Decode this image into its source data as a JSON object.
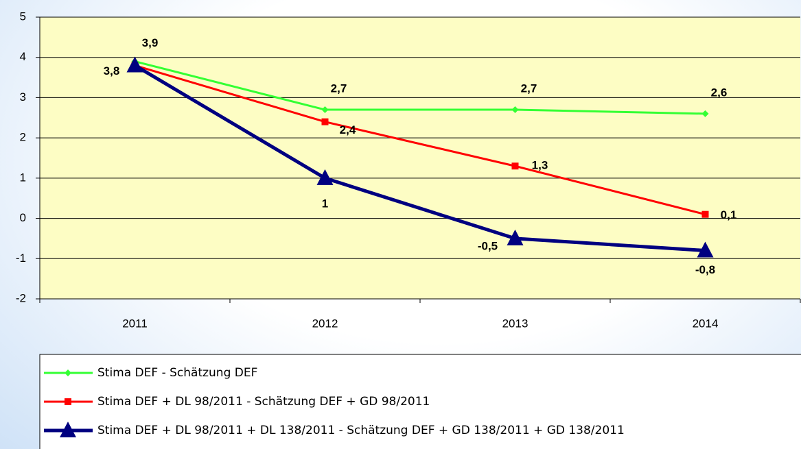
{
  "chart_data": {
    "type": "line",
    "categories": [
      "2011",
      "2012",
      "2013",
      "2014"
    ],
    "series": [
      {
        "name": "Stima DEF - Schätzung DEF",
        "color": "#33ff33",
        "marker": "diamond",
        "values": [
          3.9,
          2.7,
          2.7,
          2.6
        ],
        "value_labels": [
          "3,9",
          "2,7",
          "2,7",
          "2,6"
        ]
      },
      {
        "name": "Stima DEF + DL 98/2011 - Schätzung DEF + GD 98/2011",
        "color": "#ff0000",
        "marker": "square",
        "values": [
          3.8,
          2.4,
          1.3,
          0.1
        ],
        "value_labels": [
          "3,8",
          "2,4",
          "1,3",
          "0,1"
        ]
      },
      {
        "name": "Stima DEF + DL 98/2011 + DL 138/2011 - Schätzung DEF + GD 138/2011 + GD 138/2011",
        "color": "#000080",
        "marker": "triangle",
        "values": [
          3.8,
          1,
          -0.5,
          -0.8
        ],
        "value_labels": [
          null,
          "1",
          "-0,5",
          "-0,8"
        ]
      }
    ],
    "ylim": [
      -2,
      5
    ],
    "yticks": [
      -2,
      -1,
      0,
      1,
      2,
      3,
      4,
      5
    ],
    "grid": true,
    "legend": "bottom"
  }
}
